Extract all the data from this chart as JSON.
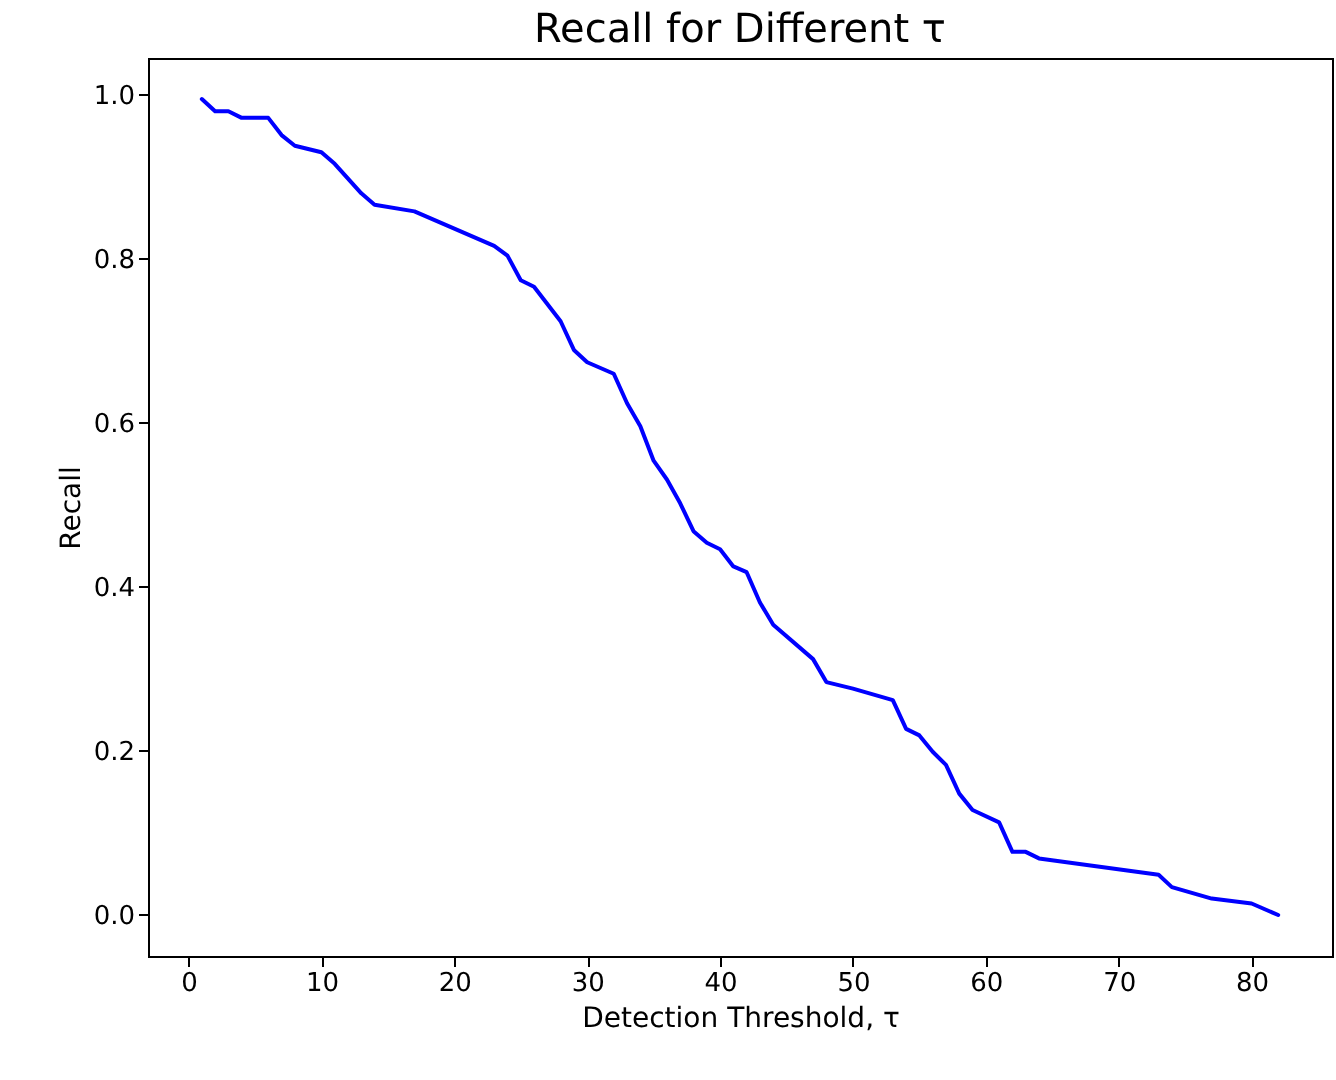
{
  "chart_data": {
    "type": "line",
    "title": "Recall for Different τ",
    "xlabel": "Detection Threshold, τ",
    "ylabel": "Recall",
    "x": [
      1,
      2,
      3,
      4,
      6,
      7,
      8,
      10,
      11,
      13,
      14,
      17,
      23,
      24,
      25,
      26,
      28,
      29,
      30,
      32,
      33,
      34,
      35,
      36,
      37,
      38,
      39,
      40,
      41,
      42,
      43,
      44,
      47,
      48,
      50,
      53,
      54,
      55,
      56,
      57,
      58,
      59,
      61,
      62,
      63,
      64,
      73,
      74,
      77,
      80,
      82
    ],
    "series": [
      {
        "color": "#0000ff",
        "values": [
          0.995,
          0.98,
          0.98,
          0.972,
          0.972,
          0.951,
          0.938,
          0.93,
          0.916,
          0.88,
          0.866,
          0.858,
          0.816,
          0.804,
          0.774,
          0.766,
          0.724,
          0.689,
          0.674,
          0.66,
          0.624,
          0.596,
          0.554,
          0.531,
          0.502,
          0.468,
          0.454,
          0.446,
          0.425,
          0.418,
          0.381,
          0.354,
          0.312,
          0.284,
          0.276,
          0.262,
          0.227,
          0.219,
          0.199,
          0.183,
          0.148,
          0.128,
          0.113,
          0.077,
          0.077,
          0.069,
          0.049,
          0.034,
          0.02,
          0.014,
          0.0
        ]
      }
    ],
    "xlim": [
      -3.05,
      86.05
    ],
    "ylim": [
      -0.05,
      1.045
    ],
    "xticks": [
      0,
      10,
      20,
      30,
      40,
      50,
      60,
      70,
      80
    ],
    "yticks": [
      {
        "value": 0,
        "label": "0.0"
      },
      0.2,
      0.4,
      0.6,
      0.8,
      {
        "value": 1,
        "label": "1.0"
      }
    ],
    "grid": false,
    "marker": "none",
    "line_style": "solid"
  }
}
